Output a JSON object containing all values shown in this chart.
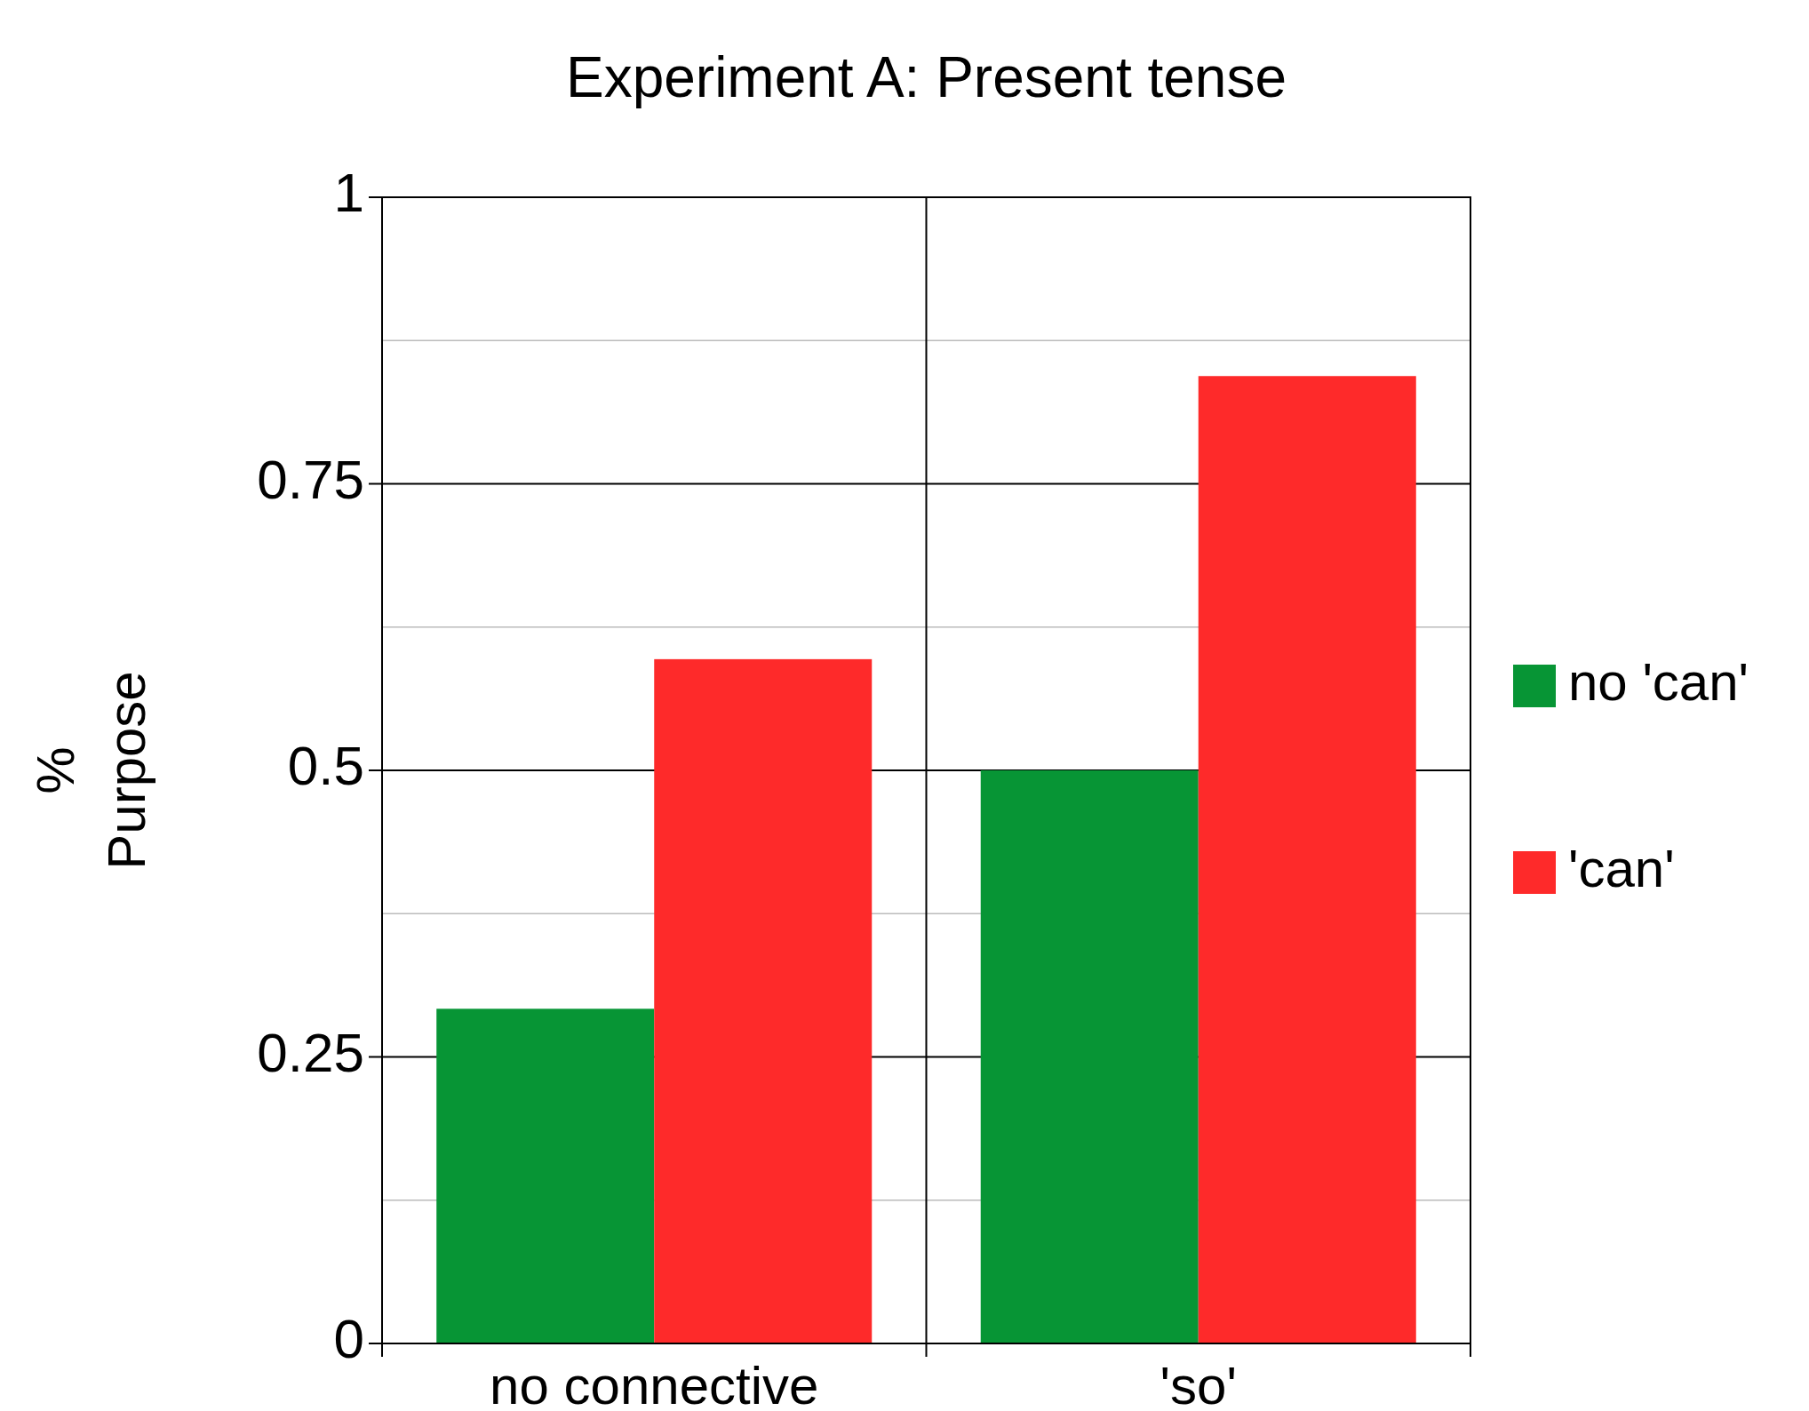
{
  "chart_data": {
    "type": "bar",
    "title": "Experiment A: Present tense",
    "ylabel": "%\nPurpose",
    "categories": [
      "no connective",
      "'so'"
    ],
    "series": [
      {
        "name": "no 'can'",
        "color": "#079535",
        "values": [
          0.292,
          0.5
        ]
      },
      {
        "name": "'can'",
        "color": "#fe2a2a",
        "values": [
          0.597,
          0.844
        ]
      }
    ],
    "ylim": [
      0,
      1
    ],
    "yticks": [
      0,
      {
        "value": 0.125,
        "label": null
      },
      {
        "value": 0.25,
        "label": "0.25"
      },
      {
        "value": 0.375,
        "label": null
      },
      {
        "value": 0.5,
        "label": "0.5"
      },
      {
        "value": 0.625,
        "label": null
      },
      {
        "value": 0.75,
        "label": "0.75"
      },
      {
        "value": 0.875,
        "label": null
      },
      1
    ],
    "grid": "y",
    "legend": "right"
  }
}
